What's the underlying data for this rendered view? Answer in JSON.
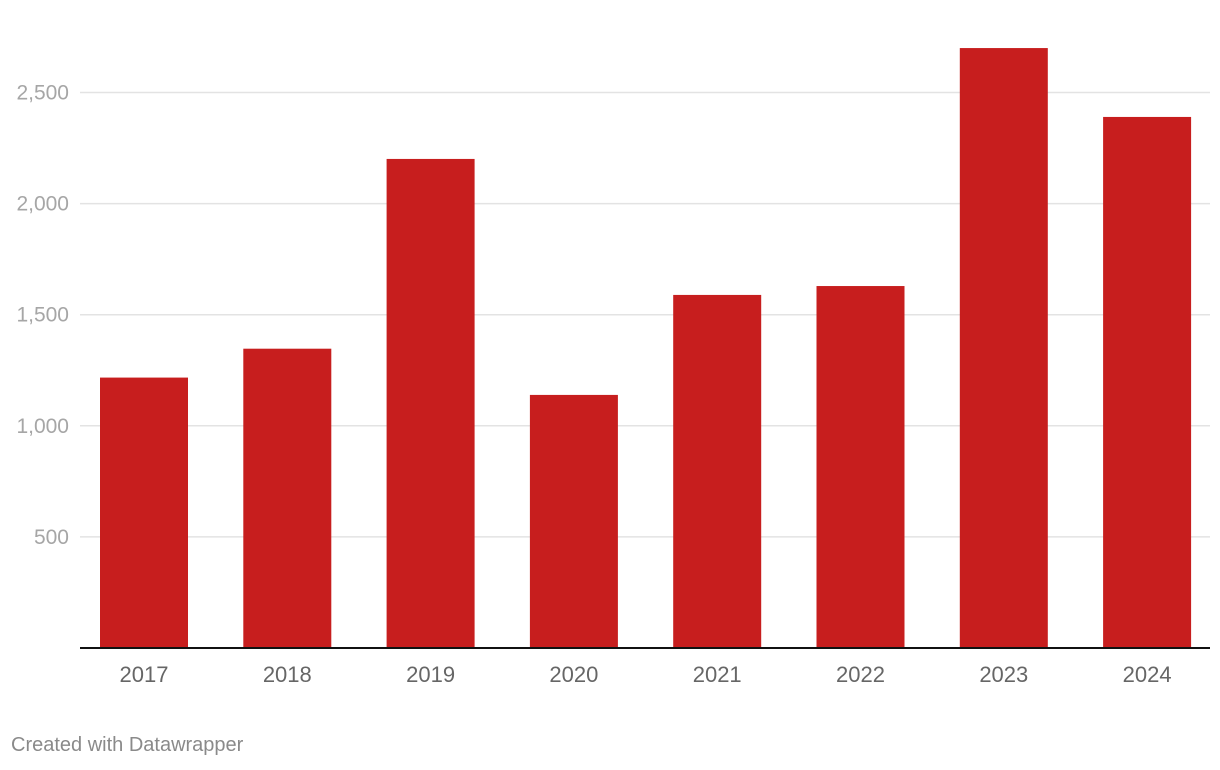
{
  "chart_data": {
    "type": "bar",
    "categories": [
      "2017",
      "2018",
      "2019",
      "2020",
      "2021",
      "2022",
      "2023",
      "2024"
    ],
    "values": [
      1217,
      1347,
      2201,
      1139,
      1589,
      1629,
      2700,
      2390
    ],
    "ylim": [
      0,
      2800
    ],
    "yticks": [
      500,
      1000,
      1500,
      2000,
      2500
    ],
    "ytick_labels": [
      "500",
      "1,000",
      "1,500",
      "2,000",
      "2,500"
    ],
    "grid": true,
    "bar_color": "#c71e1e",
    "title": "",
    "xlabel": "",
    "ylabel": ""
  },
  "footer": {
    "credit": "Created with Datawrapper"
  }
}
